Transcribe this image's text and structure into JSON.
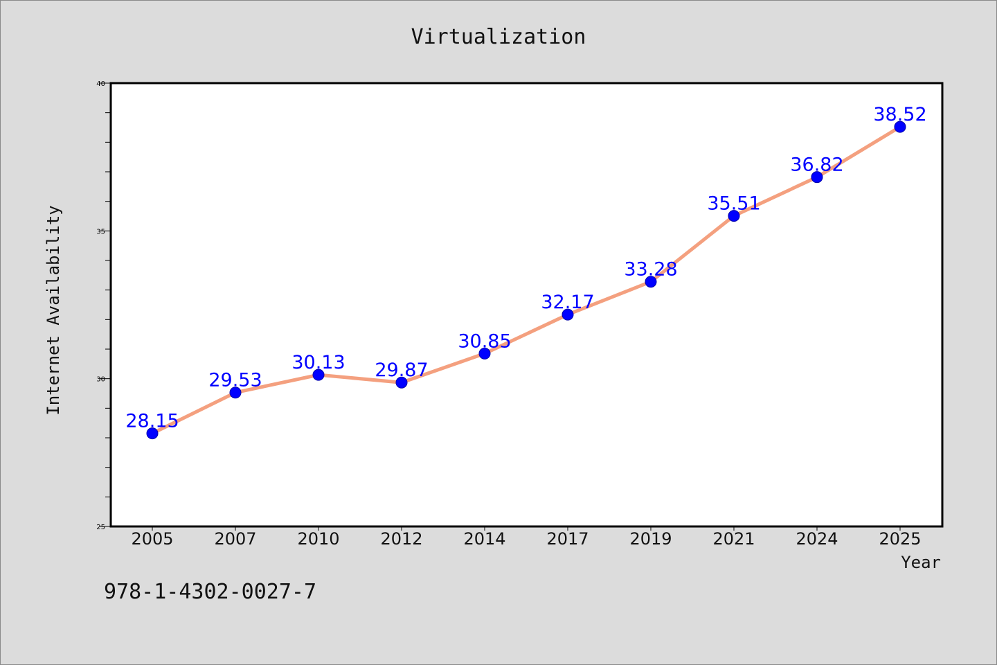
{
  "chart_data": {
    "type": "line",
    "title": "Virtualization",
    "xlabel": "Year",
    "ylabel": "Internet Availability",
    "categories": [
      "2005",
      "2007",
      "2010",
      "2012",
      "2014",
      "2017",
      "2019",
      "2021",
      "2024",
      "2025"
    ],
    "values": [
      28.15,
      29.53,
      30.13,
      29.87,
      30.85,
      32.17,
      33.28,
      35.51,
      36.82,
      38.52
    ],
    "data_labels": [
      "28.15",
      "29.53",
      "30.13",
      "29.87",
      "30.85",
      "32.17",
      "33.28",
      "35.51",
      "36.82",
      "38.52"
    ],
    "ylim": [
      25,
      40
    ],
    "yticks": [
      "25",
      "30",
      "35",
      "40"
    ],
    "grid": false,
    "colors": {
      "line": "#f4a07f",
      "marker": "#0000ff",
      "label": "#0000ff"
    }
  },
  "footer": {
    "code": "978-1-4302-0027-7"
  }
}
